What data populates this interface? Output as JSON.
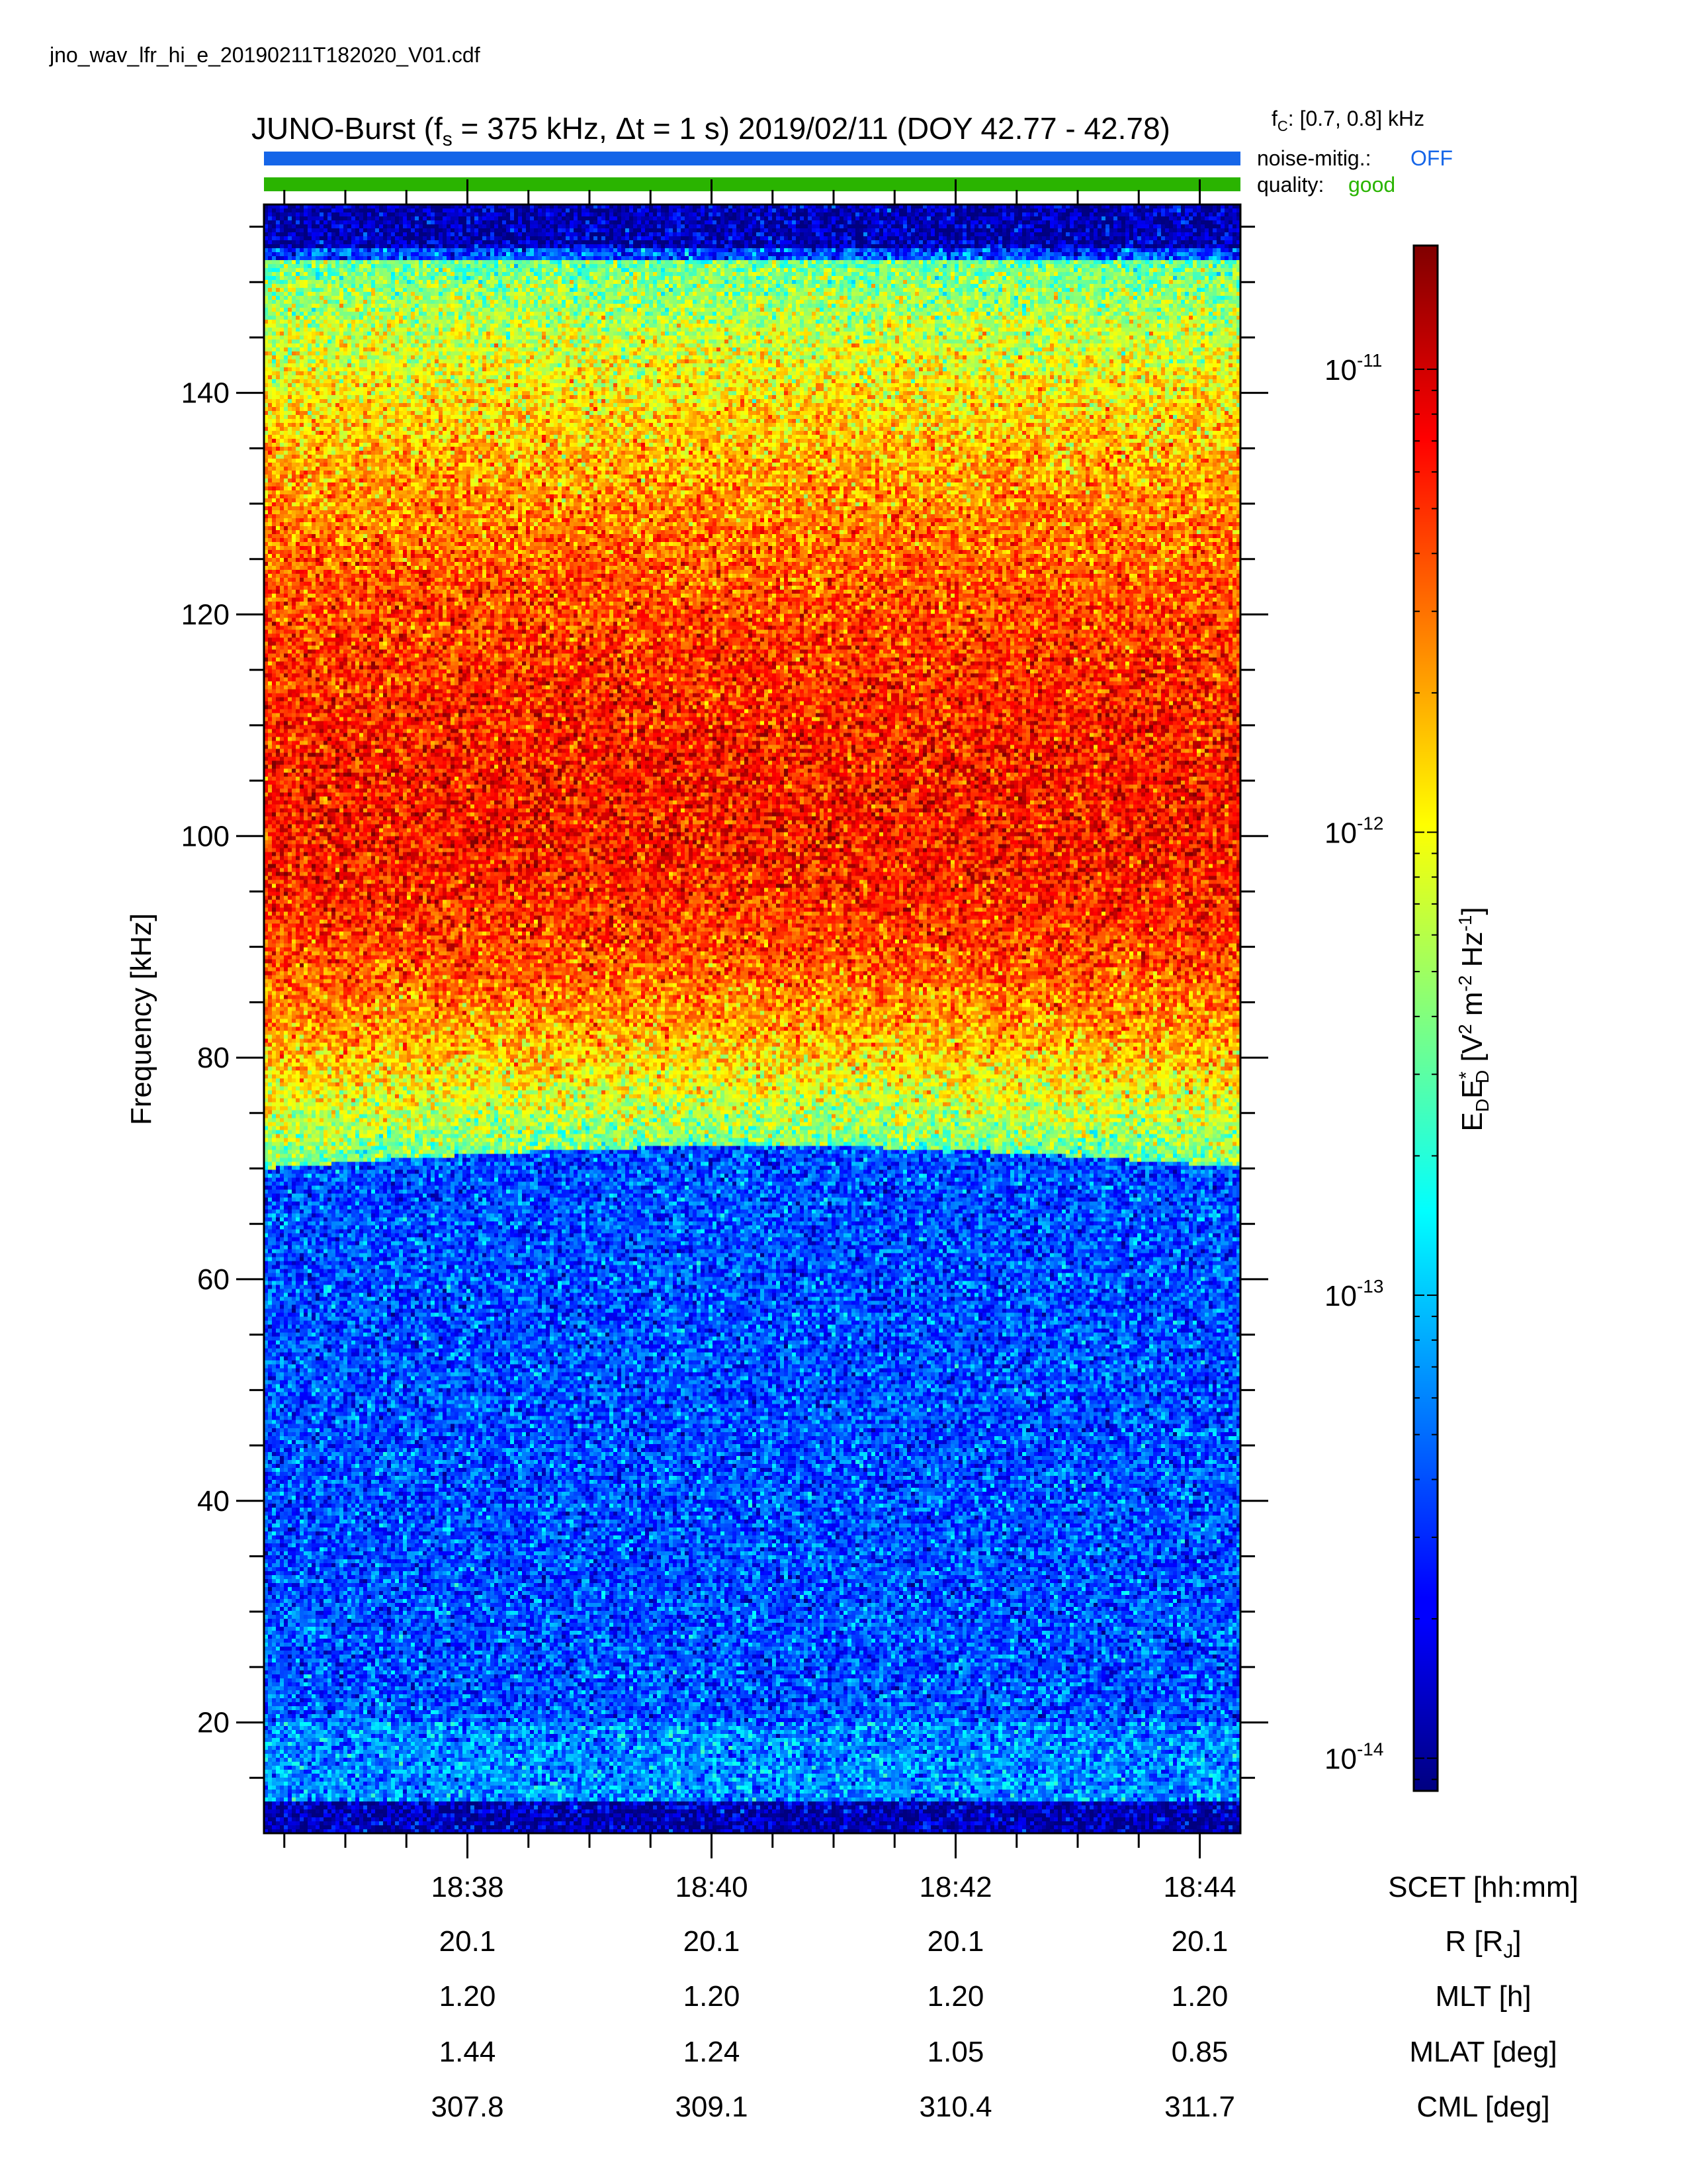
{
  "file_name": "jno_wav_lfr_hi_e_20190211T182020_V01.cdf",
  "header": {
    "title": {
      "mission": "JUNO-Burst (f",
      "fs_sub": "s",
      "mid": " = 375 kHz, Δt = 1 s)  2019/02/11 (DOY 42.77 - 42.78)"
    },
    "fc": {
      "base": "f",
      "sub": "C",
      "rest": ": [0.7, 0.8] kHz"
    },
    "noise_mitig": {
      "label": "noise-mitig.:",
      "value": "OFF",
      "color": "#1565e8"
    },
    "quality": {
      "label": "quality:",
      "value": "good",
      "color": "#2ab400"
    }
  },
  "chart_data": {
    "type": "heatmap",
    "title": "JUNO-Burst (fs = 375 kHz, Δt = 1 s)  2019/02/11 (DOY 42.77 - 42.78)",
    "ylabel": "Frequency [kHz]",
    "ylim": [
      10,
      157
    ],
    "yticks": [
      20,
      40,
      60,
      80,
      100,
      120,
      140
    ],
    "x_time_range": [
      "18:36:20",
      "18:44:20"
    ],
    "xticks": [
      "18:38",
      "18:40",
      "18:42",
      "18:44"
    ],
    "colorbar": {
      "label": "E_D E*_D [V² m⁻² Hz⁻¹]",
      "label_parts": {
        "e": "E",
        "d": "D",
        "star": "*",
        "open": " [V",
        "two": "2",
        "m": " m",
        "neg2": "-2",
        "hz": " Hz",
        "neg1": "-1",
        "close": "]"
      },
      "scale": "log",
      "range": [
        8.5e-15,
        1.85e-11
      ],
      "ticks": [
        {
          "base": "10",
          "exp": "-11",
          "value": 1e-11
        },
        {
          "base": "10",
          "exp": "-12",
          "value": 1e-12
        },
        {
          "base": "10",
          "exp": "-13",
          "value": 1e-13
        },
        {
          "base": "10",
          "exp": "-14",
          "value": 1e-14
        }
      ],
      "colormap": "jet"
    },
    "spectral_features": [
      {
        "description": "broad emission band",
        "center_khz": 101,
        "lower_edge_khz": 70,
        "upper_edge_khz": 152
      }
    ],
    "ephemeris": {
      "rows": [
        {
          "label": "SCET [hh:mm]",
          "values": [
            "18:38",
            "18:40",
            "18:42",
            "18:44"
          ]
        },
        {
          "label": "R [R",
          "label_sub": "J",
          "label_tail": "]",
          "values": [
            "20.1",
            "20.1",
            "20.1",
            "20.1"
          ]
        },
        {
          "label": "MLT [h]",
          "values": [
            "1.20",
            "1.20",
            "1.20",
            "1.20"
          ]
        },
        {
          "label": "MLAT [deg]",
          "values": [
            "1.44",
            "1.24",
            "1.05",
            "0.85"
          ]
        },
        {
          "label": "CML [deg]",
          "values": [
            "307.8",
            "309.1",
            "310.4",
            "311.7"
          ]
        }
      ]
    }
  }
}
